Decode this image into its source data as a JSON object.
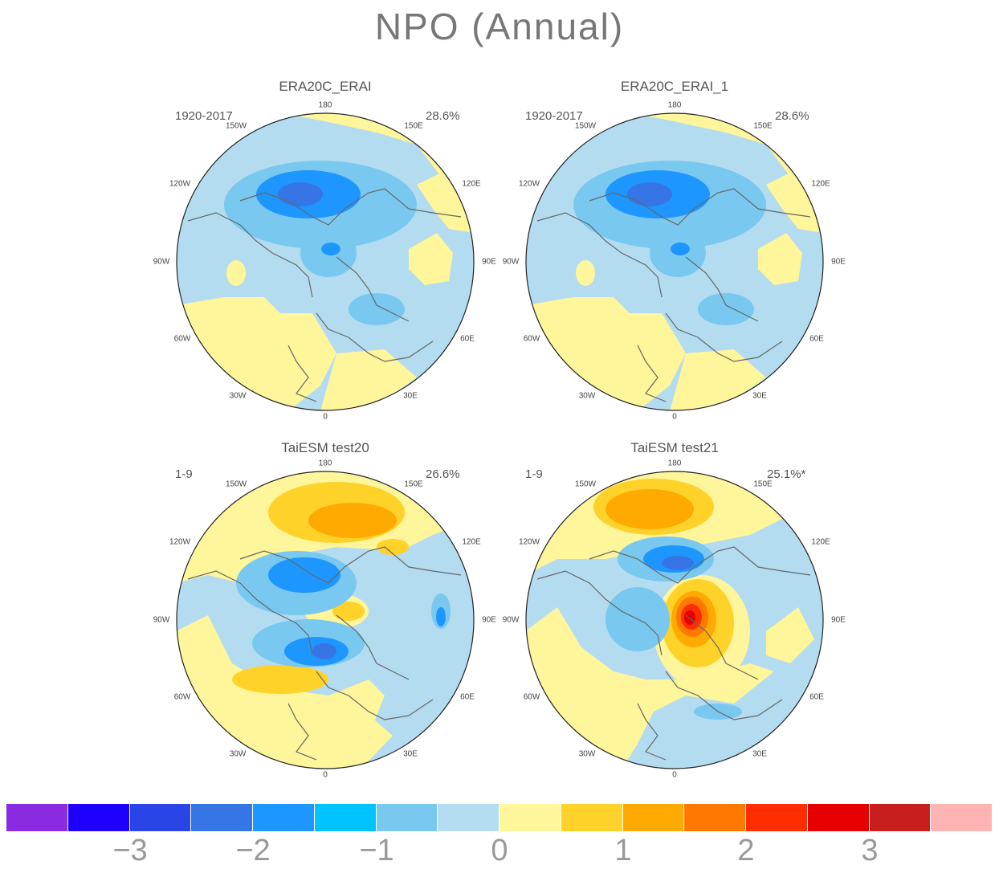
{
  "title": "NPO (Annual)",
  "panels": [
    {
      "title": "ERA20C_ERAI",
      "period": "1920-2017",
      "variance": "28.6%"
    },
    {
      "title": "ERA20C_ERAI_1",
      "period": "1920-2017",
      "variance": "28.6%"
    },
    {
      "title": "TaiESM test20",
      "period": "1-9",
      "variance": "26.6%"
    },
    {
      "title": "TaiESM test21",
      "period": "1-9",
      "variance": "25.1%*"
    }
  ],
  "longitude_labels": [
    "180",
    "150E",
    "120E",
    "90E",
    "60E",
    "30E",
    "0",
    "30W",
    "60W",
    "90W",
    "120W",
    "150W"
  ],
  "colorbar": {
    "colors": [
      "#8a2be2",
      "#1e00ff",
      "#2a45e6",
      "#3675e6",
      "#1e96ff",
      "#00c3ff",
      "#78c8f0",
      "#b4dcf0",
      "#fff59b",
      "#ffd229",
      "#ffaa00",
      "#ff7800",
      "#ff2d00",
      "#e60000",
      "#c81e1e",
      "#ffb4b4"
    ],
    "labels": [
      "−3",
      "−2",
      "−1",
      "0",
      "1",
      "2",
      "3"
    ]
  }
}
